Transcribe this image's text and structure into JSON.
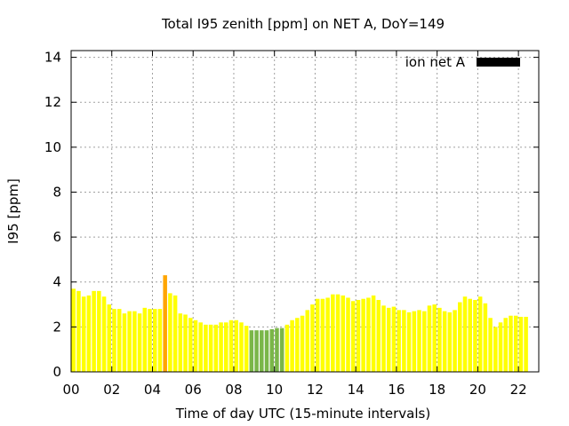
{
  "chart_data": {
    "type": "bar",
    "title": "Total I95 zenith [ppm] on NET A, DoY=149",
    "xlabel": "Time of day UTC (15-minute intervals)",
    "ylabel": "I95 [ppm]",
    "legend": {
      "label": "ion net A",
      "color": "#000000",
      "placement": "top-right"
    },
    "grid": true,
    "xlim": [
      0,
      23
    ],
    "ylim": [
      0,
      14.3
    ],
    "x_ticks": [
      {
        "value": 0,
        "label": "00"
      },
      {
        "value": 2,
        "label": "02"
      },
      {
        "value": 4,
        "label": "04"
      },
      {
        "value": 6,
        "label": "06"
      },
      {
        "value": 8,
        "label": "08"
      },
      {
        "value": 10,
        "label": "10"
      },
      {
        "value": 12,
        "label": "12"
      },
      {
        "value": 14,
        "label": "14"
      },
      {
        "value": 16,
        "label": "16"
      },
      {
        "value": 18,
        "label": "18"
      },
      {
        "value": 20,
        "label": "20"
      },
      {
        "value": 22,
        "label": "22"
      }
    ],
    "y_ticks": [
      {
        "value": 0,
        "label": "0"
      },
      {
        "value": 2,
        "label": "2"
      },
      {
        "value": 4,
        "label": "4"
      },
      {
        "value": 6,
        "label": "6"
      },
      {
        "value": 8,
        "label": "8"
      },
      {
        "value": 10,
        "label": "10"
      },
      {
        "value": 12,
        "label": "12"
      },
      {
        "value": 14,
        "label": "14"
      }
    ],
    "interval_hours": 0.25,
    "colors": {
      "normal": "#ffff00",
      "low": "#7ab648",
      "high": "#ffa500"
    },
    "values": [
      3.7,
      3.6,
      3.35,
      3.4,
      3.6,
      3.6,
      3.35,
      3.0,
      2.8,
      2.8,
      2.6,
      2.7,
      2.7,
      2.6,
      2.85,
      2.8,
      2.8,
      2.8,
      4.3,
      3.5,
      3.4,
      2.6,
      2.55,
      2.4,
      2.3,
      2.2,
      2.1,
      2.1,
      2.1,
      2.2,
      2.2,
      2.3,
      2.3,
      2.2,
      2.05,
      1.85,
      1.85,
      1.85,
      1.85,
      1.9,
      1.95,
      1.95,
      2.1,
      2.3,
      2.4,
      2.5,
      2.75,
      3.0,
      3.25,
      3.25,
      3.3,
      3.45,
      3.45,
      3.4,
      3.3,
      3.15,
      3.2,
      3.25,
      3.3,
      3.4,
      3.2,
      2.95,
      2.85,
      2.9,
      2.75,
      2.75,
      2.65,
      2.7,
      2.75,
      2.7,
      2.95,
      3.0,
      2.85,
      2.7,
      2.65,
      2.75,
      3.1,
      3.35,
      3.25,
      3.2,
      3.35,
      3.05,
      2.4,
      2.0,
      2.2,
      2.4,
      2.5,
      2.5,
      2.45,
      2.45
    ],
    "bar_levels": [
      "normal",
      "normal",
      "normal",
      "normal",
      "normal",
      "normal",
      "normal",
      "normal",
      "normal",
      "normal",
      "normal",
      "normal",
      "normal",
      "normal",
      "normal",
      "normal",
      "normal",
      "normal",
      "high",
      "normal",
      "normal",
      "normal",
      "normal",
      "normal",
      "normal",
      "normal",
      "normal",
      "normal",
      "normal",
      "normal",
      "normal",
      "normal",
      "normal",
      "normal",
      "normal",
      "low",
      "low",
      "low",
      "low",
      "low",
      "low",
      "low",
      "normal",
      "normal",
      "normal",
      "normal",
      "normal",
      "normal",
      "normal",
      "normal",
      "normal",
      "normal",
      "normal",
      "normal",
      "normal",
      "normal",
      "normal",
      "normal",
      "normal",
      "normal",
      "normal",
      "normal",
      "normal",
      "normal",
      "normal",
      "normal",
      "normal",
      "normal",
      "normal",
      "normal",
      "normal",
      "normal",
      "normal",
      "normal",
      "normal",
      "normal",
      "normal",
      "normal",
      "normal",
      "normal",
      "normal",
      "normal",
      "normal",
      "normal",
      "normal",
      "normal",
      "normal",
      "normal",
      "normal",
      "normal"
    ]
  }
}
